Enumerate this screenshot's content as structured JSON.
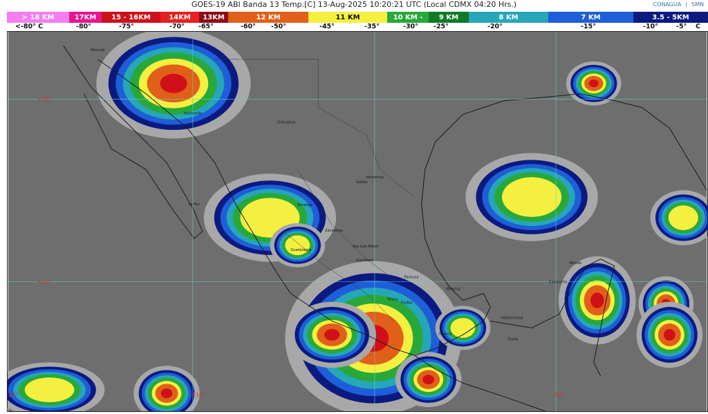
{
  "title": "GOES-19 ABI Banda 13 Temp.[C] 13-Aug-2025 10:20:21 UTC (Local CDMX  04:20 Hrs.)",
  "logos": [
    "CONAGUA",
    "SMN"
  ],
  "legend": [
    {
      "label": "> 18 KM",
      "color": "#f47ef0"
    },
    {
      "label": "17KM",
      "color": "#e8158f"
    },
    {
      "label": "15 - 16KM",
      "color": "#d01018"
    },
    {
      "label": "14KM",
      "color": "#e82020"
    },
    {
      "label": "13KM",
      "color": "#8e0c14"
    },
    {
      "label": "12 KM",
      "color": "#e0601a"
    },
    {
      "label": "11 KM",
      "color": "#f4f040"
    },
    {
      "label": "10 KM -",
      "color": "#28a83a"
    },
    {
      "label": "9 KM",
      "color": "#107a26"
    },
    {
      "label": "8 KM",
      "color": "#26a6b8"
    },
    {
      "label": "7 KM",
      "color": "#1e5ed8"
    },
    {
      "label": "3.5 - 5KM",
      "color": "#0c1a80"
    }
  ],
  "temperatures": [
    "<-80° C",
    "-80°",
    "-75°",
    "-70°",
    "-65°",
    "-60°",
    "-50°",
    "-45°",
    "-35°",
    "-30°",
    "-25°",
    "-20°",
    "-15°",
    "-10°",
    "-5°",
    "C"
  ],
  "map": {
    "latitudes": [
      "+30°",
      "+20°"
    ],
    "longitudes": [
      "-120°",
      "-110°",
      "-90°"
    ],
    "cities": [
      "Mexicali",
      "Hermosillo",
      "Chihuahua",
      "La Paz",
      "Monterrey",
      "Saltillo",
      "Durango",
      "Zacatecas",
      "San Luis Potosí",
      "Guadalajara",
      "Querétaro",
      "Pachuca",
      "Toluca",
      "Puebla",
      "Oaxaca",
      "Veracruz",
      "Villahermosa",
      "Campeche",
      "Mérida",
      "Tuxtla"
    ]
  }
}
